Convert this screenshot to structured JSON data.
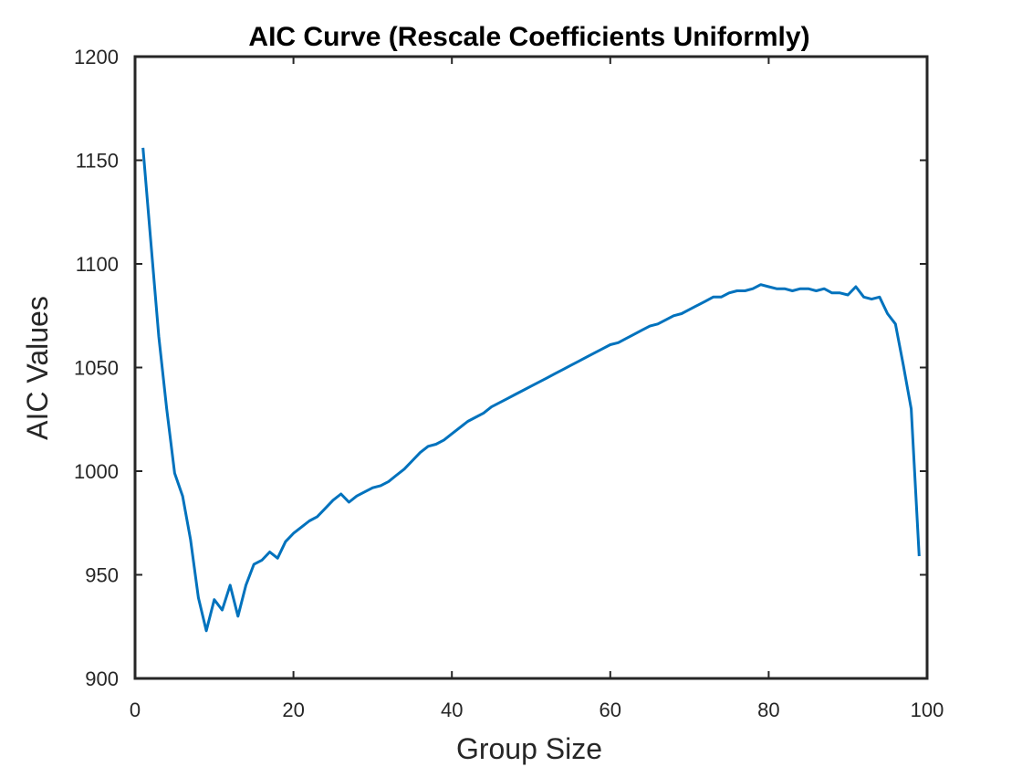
{
  "chart_data": {
    "type": "line",
    "title": "AIC Curve (Rescale Coefficients Uniformly)",
    "xlabel": "Group Size",
    "ylabel": "AIC Values",
    "xlim": [
      0,
      100
    ],
    "ylim": [
      900,
      1200
    ],
    "xticks": [
      0,
      20,
      40,
      60,
      80,
      100
    ],
    "xtick_labels": [
      "0",
      "20",
      "40",
      "60",
      "80",
      "100"
    ],
    "yticks": [
      900,
      950,
      1000,
      1050,
      1100,
      1150,
      1200
    ],
    "ytick_labels": [
      "900",
      "950",
      "1000",
      "1050",
      "1100",
      "1150",
      "1200"
    ],
    "grid": false,
    "series": [
      {
        "color": "#0072BD",
        "x": [
          1,
          2,
          3,
          4,
          5,
          6,
          7,
          8,
          9,
          10,
          11,
          12,
          13,
          14,
          15,
          16,
          17,
          18,
          19,
          20,
          21,
          22,
          23,
          24,
          25,
          26,
          27,
          28,
          29,
          30,
          31,
          32,
          33,
          34,
          35,
          36,
          37,
          38,
          39,
          40,
          41,
          42,
          43,
          44,
          45,
          46,
          47,
          48,
          49,
          50,
          51,
          52,
          53,
          54,
          55,
          56,
          57,
          58,
          59,
          60,
          61,
          62,
          63,
          64,
          65,
          66,
          67,
          68,
          69,
          70,
          71,
          72,
          73,
          74,
          75,
          76,
          77,
          78,
          79,
          80,
          81,
          82,
          83,
          84,
          85,
          86,
          87,
          88,
          89,
          90,
          91,
          92,
          93,
          94,
          95,
          96,
          97,
          98,
          99
        ],
        "y": [
          1156,
          1110,
          1065,
          1030,
          999,
          988,
          967,
          939,
          923,
          938,
          933,
          945,
          930,
          945,
          955,
          957,
          961,
          958,
          966,
          970,
          973,
          976,
          978,
          982,
          986,
          989,
          985,
          988,
          990,
          992,
          993,
          995,
          998,
          1001,
          1005,
          1009,
          1012,
          1013,
          1015,
          1018,
          1021,
          1024,
          1026,
          1028,
          1031,
          1033,
          1035,
          1037,
          1039,
          1041,
          1043,
          1045,
          1047,
          1049,
          1051,
          1053,
          1055,
          1057,
          1059,
          1061,
          1062,
          1064,
          1066,
          1068,
          1070,
          1071,
          1073,
          1075,
          1076,
          1078,
          1080,
          1082,
          1084,
          1084,
          1086,
          1087,
          1087,
          1088,
          1090,
          1089,
          1088,
          1088,
          1087,
          1088,
          1088,
          1087,
          1088,
          1086,
          1086,
          1085,
          1089,
          1084,
          1083,
          1084,
          1076,
          1071,
          1051,
          1030,
          959
        ]
      }
    ]
  }
}
